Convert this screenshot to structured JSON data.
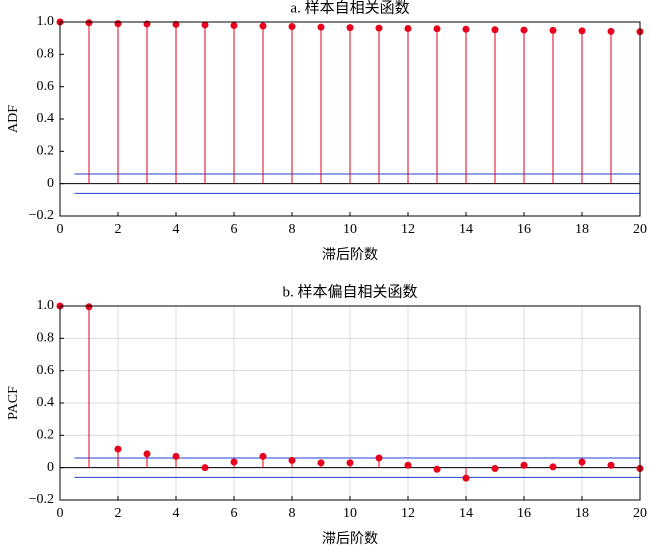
{
  "chart_data": [
    {
      "type": "stem",
      "title": "a. 样本自相关函数",
      "xlabel": "滞后阶数",
      "ylabel": "ADF",
      "x": [
        0,
        1,
        2,
        3,
        4,
        5,
        6,
        7,
        8,
        9,
        10,
        11,
        12,
        13,
        14,
        15,
        16,
        17,
        18,
        19,
        20
      ],
      "values": [
        1.0,
        0.995,
        0.99,
        0.988,
        0.985,
        0.982,
        0.978,
        0.975,
        0.972,
        0.968,
        0.965,
        0.962,
        0.96,
        0.958,
        0.955,
        0.952,
        0.95,
        0.948,
        0.945,
        0.942,
        0.94
      ],
      "color": "#e8001c",
      "bounds": [
        0.06,
        -0.06
      ],
      "bounds_xlim": [
        0.5,
        20
      ],
      "bounds_color": "#2040d0",
      "xlim": [
        0,
        20
      ],
      "ylim": [
        -0.2,
        1.0
      ],
      "xticks": [
        0,
        2,
        4,
        6,
        8,
        10,
        12,
        14,
        16,
        18,
        20
      ],
      "yticks": [
        {
          "value": -0.2,
          "label": "−0.2"
        },
        0,
        0.2,
        0.4,
        0.6,
        0.8,
        {
          "value": 1.0,
          "label": "1.0"
        }
      ],
      "grid": false
    },
    {
      "type": "stem",
      "title": "b. 样本偏自相关函数",
      "xlabel": "滞后阶数",
      "ylabel": "PACF",
      "x": [
        0,
        1,
        2,
        3,
        4,
        5,
        6,
        7,
        8,
        9,
        10,
        11,
        12,
        13,
        14,
        15,
        16,
        17,
        18,
        19,
        20
      ],
      "values": [
        1.0,
        0.995,
        0.115,
        0.085,
        0.07,
        0.0,
        0.035,
        0.07,
        0.045,
        0.03,
        0.03,
        0.06,
        0.015,
        -0.01,
        -0.065,
        -0.005,
        0.015,
        0.005,
        0.035,
        0.015,
        -0.005
      ],
      "color": "#e8001c",
      "bounds": [
        0.06,
        -0.06
      ],
      "bounds_xlim": [
        0.5,
        20
      ],
      "bounds_color": "#2040d0",
      "xlim": [
        0,
        20
      ],
      "ylim": [
        -0.2,
        1.0
      ],
      "xticks": [
        0,
        2,
        4,
        6,
        8,
        10,
        12,
        14,
        16,
        18,
        20
      ],
      "yticks": [
        {
          "value": -0.2,
          "label": "−0.2"
        },
        0,
        0.2,
        0.4,
        0.6,
        0.8,
        {
          "value": 1.0,
          "label": "1.0"
        }
      ],
      "grid": true
    }
  ]
}
